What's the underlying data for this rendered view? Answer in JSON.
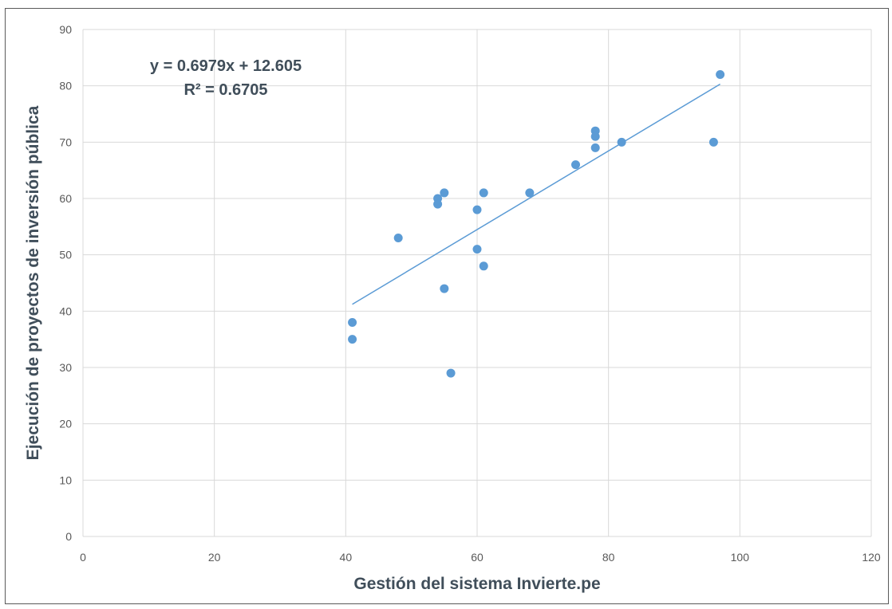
{
  "chart_data": {
    "type": "scatter",
    "xlabel": "Gestión del sistema Invierte.pe",
    "ylabel": "Ejecución de proyectos de inversión pública",
    "xlim": [
      0,
      120
    ],
    "ylim": [
      0,
      90
    ],
    "xticks": [
      0,
      20,
      40,
      60,
      80,
      100,
      120
    ],
    "yticks": [
      0,
      10,
      20,
      30,
      40,
      50,
      60,
      70,
      80,
      90
    ],
    "grid": true,
    "points": [
      {
        "x": 41,
        "y": 38
      },
      {
        "x": 41,
        "y": 35
      },
      {
        "x": 48,
        "y": 53
      },
      {
        "x": 54,
        "y": 60
      },
      {
        "x": 54,
        "y": 59
      },
      {
        "x": 55,
        "y": 61
      },
      {
        "x": 55,
        "y": 44
      },
      {
        "x": 56,
        "y": 29
      },
      {
        "x": 60,
        "y": 58
      },
      {
        "x": 60,
        "y": 51
      },
      {
        "x": 61,
        "y": 61
      },
      {
        "x": 61,
        "y": 48
      },
      {
        "x": 68,
        "y": 61
      },
      {
        "x": 75,
        "y": 66
      },
      {
        "x": 78,
        "y": 72
      },
      {
        "x": 78,
        "y": 71
      },
      {
        "x": 78,
        "y": 69
      },
      {
        "x": 82,
        "y": 70
      },
      {
        "x": 96,
        "y": 70
      },
      {
        "x": 97,
        "y": 82
      }
    ],
    "trendline": {
      "slope": 0.6979,
      "intercept": 12.605,
      "x_range": [
        41,
        97
      ]
    },
    "annotation": {
      "equation": "y = 0.6979x + 12.605",
      "r_squared": "R² = 0.6705"
    },
    "colors": {
      "points": "#5b9bd5",
      "trendline": "#5b9bd5",
      "grid": "#d9d9d9"
    }
  }
}
